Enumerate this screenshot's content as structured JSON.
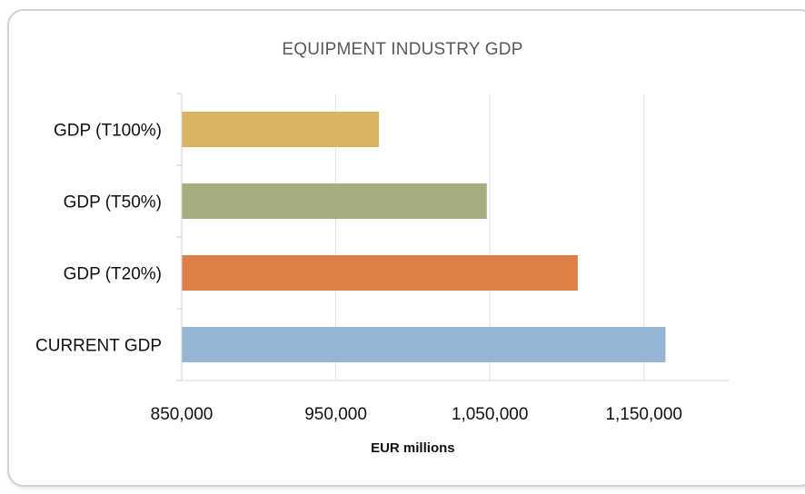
{
  "chart_data": {
    "type": "bar",
    "orientation": "horizontal",
    "title": "EQUIPMENT INDUSTRY GDP",
    "xlabel": "EUR millions",
    "ylabel": "",
    "categories": [
      "GDP (T100%)",
      "GDP (T50%)",
      "GDP (T20%)",
      "CURRENT GDP"
    ],
    "values": [
      978000,
      1048000,
      1107000,
      1164000
    ],
    "colors": [
      "#D9B462",
      "#A5AD81",
      "#DD7F47",
      "#94B5D4"
    ],
    "xlim": [
      850000,
      1205000
    ],
    "xticks": [
      850000,
      950000,
      1050000,
      1150000
    ],
    "xtick_labels": [
      "850,000",
      "950,000",
      "1,050,000",
      "1,150,000"
    ],
    "grid": "vertical",
    "legend": "none"
  }
}
